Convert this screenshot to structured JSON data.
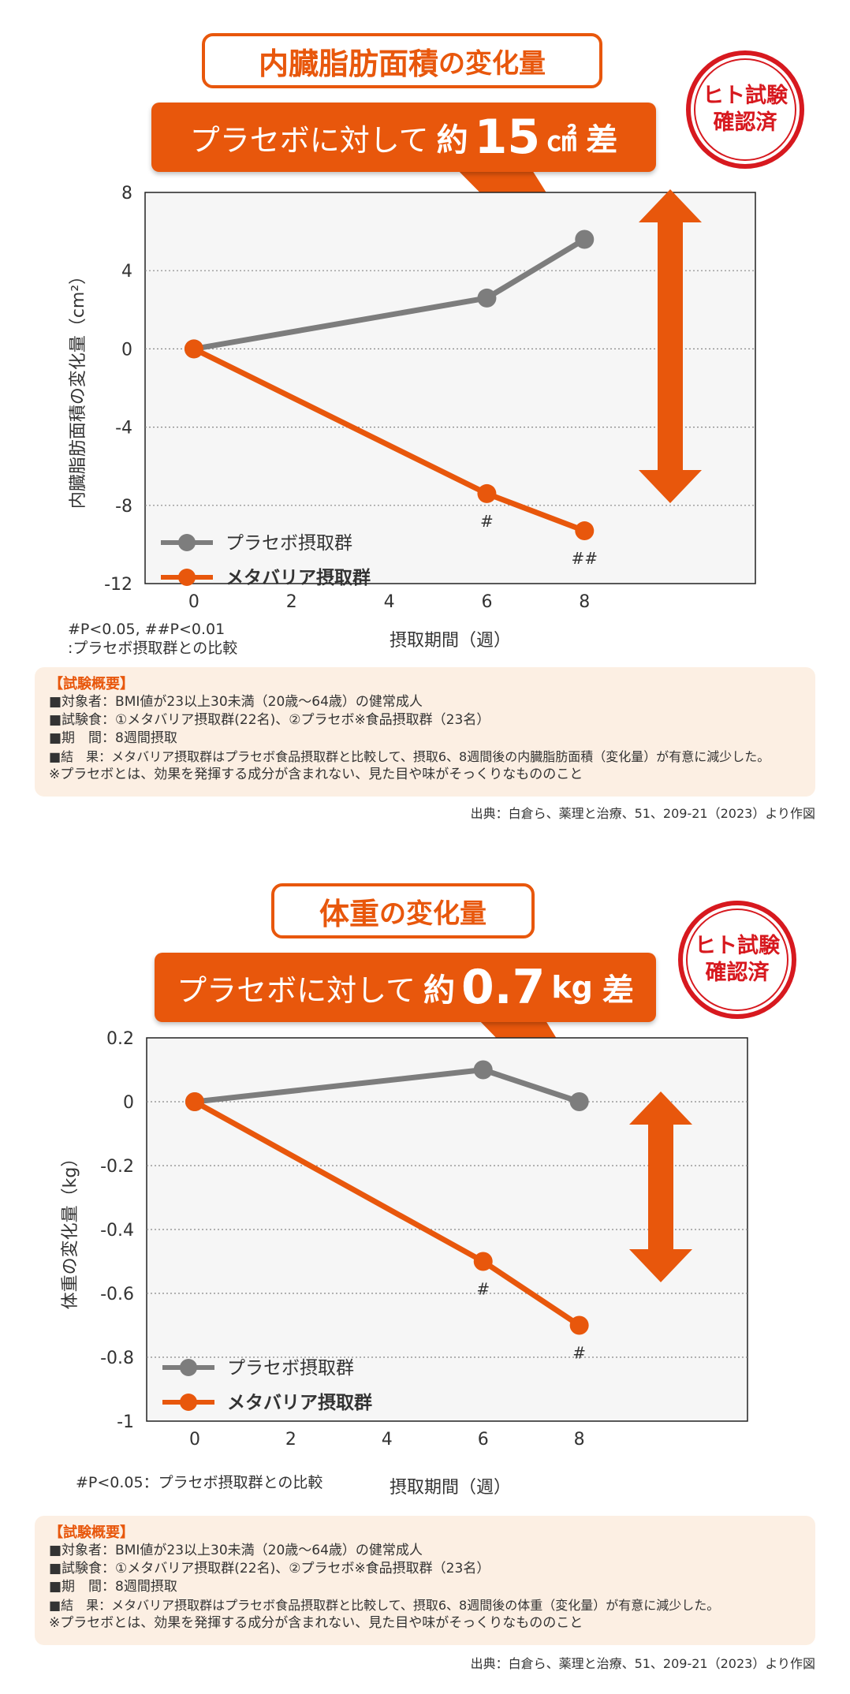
{
  "colors": {
    "accent": "#e8570c",
    "placebo": "#7d7d7d",
    "stamp": "#d7191f",
    "summary_bg": "#fcefe3"
  },
  "sections": [
    {
      "title_bold": "内臓脂肪面積",
      "title_rest": "の変化量",
      "callout_pre": "プラセボに対して",
      "callout_yaku": "約",
      "callout_num": "15",
      "callout_unit": "㎠",
      "callout_sa": "差",
      "stamp_line1": "ヒト試験",
      "stamp_line2": "確認済",
      "note_line1": "#P<0.05, ##P<0.01",
      "note_line2": ":プラセボ摂取群との比較",
      "summary_head": "【試験概要】",
      "summary_lines": [
        "■対象者：BMI値が23以上30未満（20歳～64歳）の健常成人",
        "■試験食：①メタバリア摂取群(22名)、②プラセボ※食品摂取群（23名）",
        "■期　間：8週間摂取",
        "■結　果：メタバリア摂取群はプラセボ食品摂取群と比較して、摂取6、8週間後の内臓脂肪面積（変化量）が有意に減少した。",
        "※プラセボとは、効果を発揮する成分が含まれない、見た目や味がそっくりなもののこと"
      ],
      "source": "出典：白倉ら、薬理と治療、51、209-21（2023）より作図"
    },
    {
      "title_bold": "体重",
      "title_rest": "の変化量",
      "callout_pre": "プラセボに対して",
      "callout_yaku": "約",
      "callout_num": "0.7",
      "callout_unit": "kg",
      "callout_sa": "差",
      "stamp_line1": "ヒト試験",
      "stamp_line2": "確認済",
      "note_line1": "#P<0.05：プラセボ摂取群との比較",
      "note_line2": "",
      "summary_head": "【試験概要】",
      "summary_lines": [
        "■対象者：BMI値が23以上30未満（20歳～64歳）の健常成人",
        "■試験食：①メタバリア摂取群(22名)、②プラセボ※食品摂取群（23名）",
        "■期　間：8週間摂取",
        "■結　果：メタバリア摂取群はプラセボ食品摂取群と比較して、摂取6、8週間後の体重（変化量）が有意に減少した。",
        "※プラセボとは、効果を発揮する成分が含まれない、見た目や味がそっくりなもののこと"
      ],
      "source": "出典：白倉ら、薬理と治療、51、209-21（2023）より作図"
    }
  ],
  "chart_data": [
    {
      "type": "line",
      "xlabel": "摂取期間（週）",
      "ylabel": "内臓脂肪面積の変化量（cm²）",
      "xlim": [
        -1,
        11.5
      ],
      "ylim": [
        -12,
        8
      ],
      "x_ticks": [
        0,
        2,
        4,
        6,
        8
      ],
      "y_ticks": [
        8,
        4,
        0,
        -4,
        -8,
        -12
      ],
      "grid": "dotted horizontal",
      "legend": "bottom-left",
      "series": [
        {
          "name": "プラセボ摂取群",
          "color": "#7d7d7d",
          "x": [
            0,
            6,
            8
          ],
          "y": [
            0,
            2.6,
            5.6
          ],
          "marks": [
            "",
            "",
            ""
          ]
        },
        {
          "name": "メタバリア摂取群",
          "color": "#e8570c",
          "x": [
            0,
            6,
            8
          ],
          "y": [
            0,
            -7.4,
            -9.3
          ],
          "marks": [
            "",
            "#",
            "##"
          ]
        }
      ]
    },
    {
      "type": "line",
      "xlabel": "摂取期間（週）",
      "ylabel": "体重の変化量（kg）",
      "xlim": [
        -1,
        11.5
      ],
      "ylim": [
        -1,
        0.2
      ],
      "x_ticks": [
        0,
        2,
        4,
        6,
        8
      ],
      "y_ticks": [
        0.2,
        0,
        -0.2,
        -0.4,
        -0.6,
        -0.8,
        -1
      ],
      "grid": "dotted horizontal",
      "legend": "bottom-left",
      "series": [
        {
          "name": "プラセボ摂取群",
          "color": "#7d7d7d",
          "x": [
            0,
            6,
            8
          ],
          "y": [
            0,
            0.1,
            0
          ],
          "marks": [
            "",
            "",
            ""
          ]
        },
        {
          "name": "メタバリア摂取群",
          "color": "#e8570c",
          "x": [
            0,
            6,
            8
          ],
          "y": [
            0,
            -0.5,
            -0.7
          ],
          "marks": [
            "",
            "#",
            "#"
          ]
        }
      ]
    }
  ]
}
